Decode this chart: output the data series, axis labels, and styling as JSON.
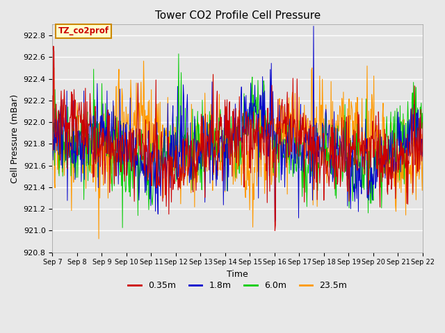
{
  "title": "Tower CO2 Profile Cell Pressure",
  "xlabel": "Time",
  "ylabel": "Cell Pressure (mBar)",
  "ylim": [
    920.8,
    922.9
  ],
  "background_color": "#e8e8e8",
  "plot_bg_color": "#e5e5e5",
  "grid_color": "#ffffff",
  "annotation_text": "TZ_co2prof",
  "annotation_bg": "#ffffcc",
  "annotation_border": "#cc8800",
  "annotation_color": "#cc0000",
  "series": [
    "0.35m",
    "1.8m",
    "6.0m",
    "23.5m"
  ],
  "colors": [
    "#cc0000",
    "#0000cc",
    "#00cc00",
    "#ff9900"
  ],
  "x_tick_labels": [
    "Sep 7",
    "Sep 8",
    "Sep 9",
    "Sep 10",
    "Sep 11",
    "Sep 12",
    "Sep 13",
    "Sep 14",
    "Sep 15",
    "Sep 16",
    "Sep 17",
    "Sep 18",
    "Sep 19",
    "Sep 20",
    "Sep 21",
    "Sep 22"
  ],
  "n_days": 15,
  "pts_per_day": 48,
  "base_mean": 921.78,
  "noise_scale": 0.18,
  "spike_scale": 0.25,
  "seed": 7
}
